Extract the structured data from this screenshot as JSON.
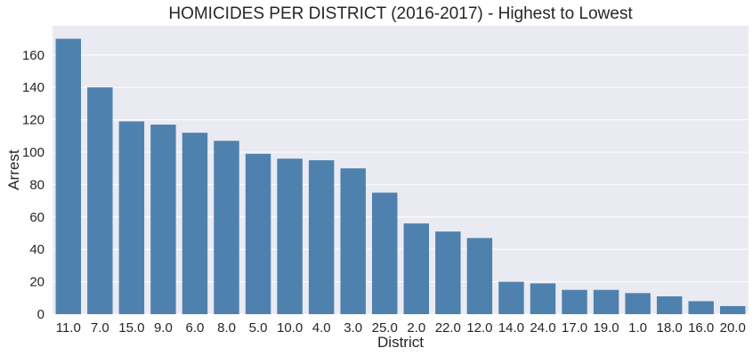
{
  "chart_data": {
    "type": "bar",
    "title": "HOMICIDES PER DISTRICT (2016-2017) - Highest to Lowest",
    "xlabel": "District",
    "ylabel": "Arrest",
    "categories": [
      "11.0",
      "7.0",
      "15.0",
      "9.0",
      "6.0",
      "8.0",
      "5.0",
      "10.0",
      "4.0",
      "3.0",
      "25.0",
      "2.0",
      "22.0",
      "12.0",
      "14.0",
      "24.0",
      "17.0",
      "19.0",
      "1.0",
      "18.0",
      "16.0",
      "20.0"
    ],
    "values": [
      170,
      140,
      119,
      117,
      112,
      107,
      99,
      96,
      95,
      90,
      75,
      56,
      51,
      47,
      20,
      19,
      15,
      15,
      13,
      11,
      8,
      5
    ],
    "ylim": [
      0,
      178
    ],
    "yticks": [
      0,
      20,
      40,
      60,
      80,
      100,
      120,
      140,
      160
    ],
    "grid": true,
    "legend": "none",
    "colors": {
      "bar": "#4f81ae",
      "plot_background": "#eaeaf2",
      "grid": "#ffffff",
      "text": "#262626"
    }
  }
}
